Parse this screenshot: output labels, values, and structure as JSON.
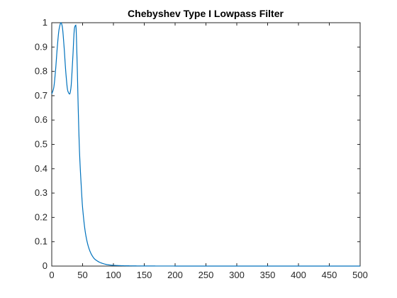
{
  "chart_data": {
    "type": "line",
    "title": "Chebyshev Type I Lowpass Filter",
    "xlabel": "",
    "ylabel": "",
    "xlim": [
      0,
      500
    ],
    "ylim": [
      0,
      1
    ],
    "grid": false,
    "x_ticks": [
      "0",
      "50",
      "100",
      "150",
      "200",
      "250",
      "300",
      "350",
      "400",
      "450",
      "500"
    ],
    "y_ticks": [
      "0",
      "0.1",
      "0.2",
      "0.3",
      "0.4",
      "0.5",
      "0.6",
      "0.7",
      "0.8",
      "0.9",
      "1"
    ],
    "line_color": "#0072BD",
    "series": [
      {
        "x": [
          0,
          3,
          6,
          9,
          12,
          15,
          17,
          20,
          23,
          26,
          29,
          31,
          34,
          37,
          39,
          41,
          43,
          45,
          48,
          50,
          55,
          60,
          65,
          70,
          80,
          90,
          100,
          120,
          150,
          200,
          300,
          400,
          500
        ],
        "values": [
          0.707,
          0.73,
          0.8,
          0.9,
          0.975,
          1.0,
          0.985,
          0.9,
          0.79,
          0.72,
          0.707,
          0.73,
          0.85,
          0.98,
          0.99,
          0.85,
          0.64,
          0.47,
          0.32,
          0.24,
          0.13,
          0.075,
          0.045,
          0.028,
          0.013,
          0.006,
          0.003,
          0.0012,
          0.0004,
          0.0001,
          0.0,
          0.0,
          0.0
        ]
      }
    ]
  }
}
